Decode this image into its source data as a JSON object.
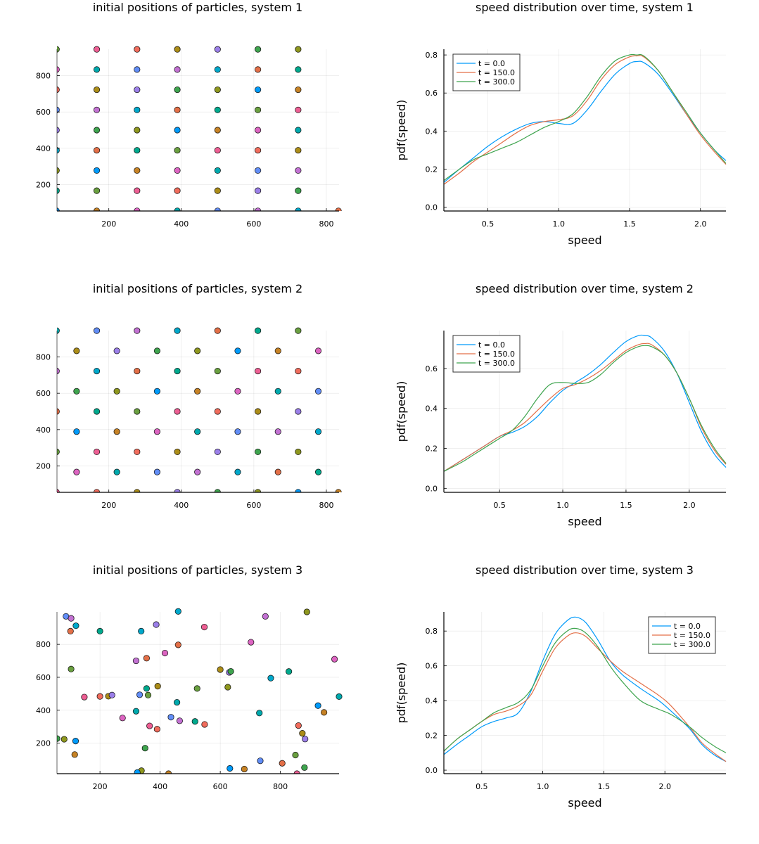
{
  "chart_data": [
    {
      "type": "scatter",
      "title": "initial positions of particles, system 1",
      "xlabel": "",
      "ylabel": "",
      "xlim": [
        57,
        835
      ],
      "ylim": [
        55,
        945
      ],
      "xticks": [
        200,
        400,
        600,
        800
      ],
      "yticks": [
        200,
        400,
        600,
        800
      ],
      "grid": true,
      "legend": "none",
      "layout": "square-lattice",
      "spacing": 111.1,
      "points": [
        [
          55.6,
          55.6
        ],
        [
          166.7,
          55.6
        ],
        [
          277.8,
          55.6
        ],
        [
          388.9,
          55.6
        ],
        [
          500,
          55.6
        ],
        [
          611.1,
          55.6
        ],
        [
          722.2,
          55.6
        ],
        [
          833.3,
          55.6
        ],
        [
          55.6,
          166.7
        ],
        [
          166.7,
          166.7
        ],
        [
          277.8,
          166.7
        ],
        [
          388.9,
          166.7
        ],
        [
          500,
          166.7
        ],
        [
          611.1,
          166.7
        ],
        [
          722.2,
          166.7
        ],
        [
          55.6,
          277.8
        ],
        [
          166.7,
          277.8
        ],
        [
          277.8,
          277.8
        ],
        [
          388.9,
          277.8
        ],
        [
          500,
          277.8
        ],
        [
          611.1,
          277.8
        ],
        [
          722.2,
          277.8
        ],
        [
          55.6,
          388.9
        ],
        [
          166.7,
          388.9
        ],
        [
          277.8,
          388.9
        ],
        [
          388.9,
          388.9
        ],
        [
          500,
          388.9
        ],
        [
          611.1,
          388.9
        ],
        [
          722.2,
          388.9
        ],
        [
          55.6,
          500
        ],
        [
          166.7,
          500
        ],
        [
          277.8,
          500
        ],
        [
          388.9,
          500
        ],
        [
          500,
          500
        ],
        [
          611.1,
          500
        ],
        [
          722.2,
          500
        ],
        [
          55.6,
          611.1
        ],
        [
          166.7,
          611.1
        ],
        [
          277.8,
          611.1
        ],
        [
          388.9,
          611.1
        ],
        [
          500,
          611.1
        ],
        [
          611.1,
          611.1
        ],
        [
          722.2,
          611.1
        ],
        [
          55.6,
          722.2
        ],
        [
          166.7,
          722.2
        ],
        [
          277.8,
          722.2
        ],
        [
          388.9,
          722.2
        ],
        [
          500,
          722.2
        ],
        [
          611.1,
          722.2
        ],
        [
          722.2,
          722.2
        ],
        [
          55.6,
          833.3
        ],
        [
          166.7,
          833.3
        ],
        [
          277.8,
          833.3
        ],
        [
          388.9,
          833.3
        ],
        [
          500,
          833.3
        ],
        [
          611.1,
          833.3
        ],
        [
          722.2,
          833.3
        ],
        [
          55.6,
          944.4
        ],
        [
          166.7,
          944.4
        ],
        [
          277.8,
          944.4
        ],
        [
          388.9,
          944.4
        ],
        [
          500,
          944.4
        ],
        [
          611.1,
          944.4
        ],
        [
          722.2,
          944.4
        ]
      ]
    },
    {
      "type": "line",
      "title": "speed distribution over time, system 1",
      "xlabel": "speed",
      "ylabel": "pdf(speed)",
      "xlim": [
        0.19,
        2.18
      ],
      "ylim": [
        -0.02,
        0.83
      ],
      "xticks": [
        0.5,
        1.0,
        1.5,
        2.0
      ],
      "xtick_labels": [
        "0.5",
        "1.0",
        "1.5",
        "2.0"
      ],
      "yticks": [
        0.0,
        0.2,
        0.4,
        0.6,
        0.8
      ],
      "ytick_labels": [
        "0.0",
        "0.2",
        "0.4",
        "0.6",
        "0.8"
      ],
      "grid": true,
      "legend": "top-left",
      "x": [
        0.19,
        0.3,
        0.4,
        0.5,
        0.6,
        0.7,
        0.8,
        0.9,
        1.0,
        1.1,
        1.2,
        1.3,
        1.4,
        1.5,
        1.55,
        1.6,
        1.7,
        1.8,
        1.9,
        2.0,
        2.1,
        2.18
      ],
      "series": [
        {
          "name": "t = 0.0",
          "color": "#009AFA",
          "values": [
            0.13,
            0.2,
            0.26,
            0.32,
            0.37,
            0.41,
            0.44,
            0.45,
            0.44,
            0.44,
            0.51,
            0.61,
            0.7,
            0.755,
            0.765,
            0.76,
            0.7,
            0.6,
            0.49,
            0.39,
            0.3,
            0.245
          ]
        },
        {
          "name": "t = 150.0",
          "color": "#E36F47",
          "values": [
            0.12,
            0.18,
            0.24,
            0.29,
            0.34,
            0.39,
            0.43,
            0.45,
            0.46,
            0.48,
            0.56,
            0.67,
            0.75,
            0.79,
            0.795,
            0.79,
            0.72,
            0.61,
            0.49,
            0.38,
            0.29,
            0.225
          ]
        },
        {
          "name": "t = 300.0",
          "color": "#3EA44E",
          "values": [
            0.14,
            0.2,
            0.25,
            0.28,
            0.31,
            0.34,
            0.38,
            0.42,
            0.45,
            0.49,
            0.58,
            0.69,
            0.77,
            0.8,
            0.8,
            0.795,
            0.72,
            0.61,
            0.5,
            0.39,
            0.3,
            0.23
          ]
        }
      ]
    },
    {
      "type": "scatter",
      "title": "initial positions of particles, system 2",
      "xlabel": "",
      "ylabel": "",
      "xlim": [
        57,
        835
      ],
      "ylim": [
        55,
        945
      ],
      "xticks": [
        200,
        400,
        600,
        800
      ],
      "yticks": [
        200,
        400,
        600,
        800
      ],
      "grid": true,
      "legend": "none",
      "layout": "hexagonal-lattice",
      "points": [
        [
          55.6,
          55.6
        ],
        [
          166.7,
          55.6
        ],
        [
          277.8,
          55.6
        ],
        [
          388.9,
          55.6
        ],
        [
          500,
          55.6
        ],
        [
          611.1,
          55.6
        ],
        [
          722.2,
          55.6
        ],
        [
          833.3,
          55.6
        ],
        [
          111.1,
          166.7
        ],
        [
          222.2,
          166.7
        ],
        [
          333.3,
          166.7
        ],
        [
          444.4,
          166.7
        ],
        [
          555.6,
          166.7
        ],
        [
          666.7,
          166.7
        ],
        [
          777.8,
          166.7
        ],
        [
          55.6,
          277.8
        ],
        [
          166.7,
          277.8
        ],
        [
          277.8,
          277.8
        ],
        [
          388.9,
          277.8
        ],
        [
          500,
          277.8
        ],
        [
          611.1,
          277.8
        ],
        [
          722.2,
          277.8
        ],
        [
          111.1,
          388.9
        ],
        [
          222.2,
          388.9
        ],
        [
          333.3,
          388.9
        ],
        [
          444.4,
          388.9
        ],
        [
          555.6,
          388.9
        ],
        [
          666.7,
          388.9
        ],
        [
          777.8,
          388.9
        ],
        [
          55.6,
          500
        ],
        [
          166.7,
          500
        ],
        [
          277.8,
          500
        ],
        [
          388.9,
          500
        ],
        [
          500,
          500
        ],
        [
          611.1,
          500
        ],
        [
          722.2,
          500
        ],
        [
          111.1,
          611.1
        ],
        [
          222.2,
          611.1
        ],
        [
          333.3,
          611.1
        ],
        [
          444.4,
          611.1
        ],
        [
          555.6,
          611.1
        ],
        [
          666.7,
          611.1
        ],
        [
          777.8,
          611.1
        ],
        [
          55.6,
          722.2
        ],
        [
          166.7,
          722.2
        ],
        [
          277.8,
          722.2
        ],
        [
          388.9,
          722.2
        ],
        [
          500,
          722.2
        ],
        [
          611.1,
          722.2
        ],
        [
          722.2,
          722.2
        ],
        [
          111.1,
          833.3
        ],
        [
          222.2,
          833.3
        ],
        [
          333.3,
          833.3
        ],
        [
          444.4,
          833.3
        ],
        [
          555.6,
          833.3
        ],
        [
          666.7,
          833.3
        ],
        [
          777.8,
          833.3
        ],
        [
          55.6,
          944.4
        ],
        [
          166.7,
          944.4
        ],
        [
          277.8,
          944.4
        ],
        [
          388.9,
          944.4
        ],
        [
          500,
          944.4
        ],
        [
          611.1,
          944.4
        ],
        [
          722.2,
          944.4
        ]
      ]
    },
    {
      "type": "line",
      "title": "speed distribution over time, system 2",
      "xlabel": "speed",
      "ylabel": "pdf(speed)",
      "xlim": [
        0.06,
        2.29
      ],
      "ylim": [
        -0.02,
        0.79
      ],
      "xticks": [
        0.5,
        1.0,
        1.5,
        2.0
      ],
      "xtick_labels": [
        "0.5",
        "1.0",
        "1.5",
        "2.0"
      ],
      "yticks": [
        0.0,
        0.2,
        0.4,
        0.6
      ],
      "ytick_labels": [
        "0.0",
        "0.2",
        "0.4",
        "0.6"
      ],
      "grid": true,
      "legend": "top-left",
      "x": [
        0.06,
        0.2,
        0.3,
        0.4,
        0.5,
        0.6,
        0.7,
        0.8,
        0.9,
        1.0,
        1.1,
        1.2,
        1.3,
        1.4,
        1.5,
        1.6,
        1.65,
        1.7,
        1.8,
        1.9,
        2.0,
        2.1,
        2.2,
        2.29
      ],
      "series": [
        {
          "name": "t = 0.0",
          "color": "#009AFA",
          "values": [
            0.085,
            0.14,
            0.18,
            0.22,
            0.26,
            0.28,
            0.31,
            0.36,
            0.43,
            0.49,
            0.53,
            0.57,
            0.62,
            0.68,
            0.735,
            0.765,
            0.765,
            0.755,
            0.69,
            0.58,
            0.43,
            0.28,
            0.17,
            0.105
          ]
        },
        {
          "name": "t = 150.0",
          "color": "#E36F47",
          "values": [
            0.085,
            0.14,
            0.18,
            0.22,
            0.26,
            0.29,
            0.33,
            0.39,
            0.45,
            0.5,
            0.52,
            0.55,
            0.59,
            0.64,
            0.69,
            0.72,
            0.725,
            0.72,
            0.67,
            0.58,
            0.45,
            0.3,
            0.19,
            0.12
          ]
        },
        {
          "name": "t = 300.0",
          "color": "#3EA44E",
          "values": [
            0.085,
            0.13,
            0.17,
            0.21,
            0.25,
            0.29,
            0.36,
            0.45,
            0.52,
            0.53,
            0.525,
            0.53,
            0.57,
            0.63,
            0.68,
            0.71,
            0.715,
            0.71,
            0.67,
            0.58,
            0.45,
            0.31,
            0.2,
            0.125
          ]
        }
      ]
    },
    {
      "type": "scatter",
      "title": "initial positions of particles, system 3",
      "xlabel": "",
      "ylabel": "",
      "xlim": [
        57,
        995
      ],
      "ylim": [
        15,
        997
      ],
      "xticks": [
        200,
        400,
        600,
        800
      ],
      "yticks": [
        200,
        400,
        600,
        800
      ],
      "grid": true,
      "legend": "none",
      "layout": "random",
      "points": [
        [
          87,
          970
        ],
        [
          104,
          958
        ],
        [
          120,
          913
        ],
        [
          102,
          880
        ],
        [
          200,
          880
        ],
        [
          104,
          650
        ],
        [
          148,
          480
        ],
        [
          200,
          484
        ],
        [
          228,
          485
        ],
        [
          240,
          492
        ],
        [
          57,
          228
        ],
        [
          81,
          224
        ],
        [
          119,
          213
        ],
        [
          116,
          131
        ],
        [
          275,
          353
        ],
        [
          320,
          394
        ],
        [
          332,
          494
        ],
        [
          320,
          700
        ],
        [
          337,
          880
        ],
        [
          355,
          716
        ],
        [
          355,
          532
        ],
        [
          360,
          492
        ],
        [
          365,
          305
        ],
        [
          390,
          285
        ],
        [
          392,
          546
        ],
        [
          387,
          920
        ],
        [
          350,
          170
        ],
        [
          338,
          33
        ],
        [
          324,
          22
        ],
        [
          428,
          15
        ],
        [
          416,
          747
        ],
        [
          456,
          448
        ],
        [
          436,
          358
        ],
        [
          465,
          336
        ],
        [
          460,
          1000
        ],
        [
          460,
          797
        ],
        [
          516,
          332
        ],
        [
          523,
          532
        ],
        [
          547,
          905
        ],
        [
          548,
          314
        ],
        [
          600,
          647
        ],
        [
          630,
          630
        ],
        [
          635,
          636
        ],
        [
          625,
          540
        ],
        [
          632,
          47
        ],
        [
          680,
          43
        ],
        [
          702,
          813
        ],
        [
          730,
          383
        ],
        [
          733,
          93
        ],
        [
          750,
          970
        ],
        [
          768,
          595
        ],
        [
          806,
          78
        ],
        [
          828,
          635
        ],
        [
          850,
          128
        ],
        [
          855,
          15
        ],
        [
          860,
          307
        ],
        [
          873,
          260
        ],
        [
          882,
          225
        ],
        [
          880,
          52
        ],
        [
          888,
          997
        ],
        [
          925,
          428
        ],
        [
          945,
          387
        ],
        [
          980,
          710
        ],
        [
          995,
          483
        ]
      ]
    },
    {
      "type": "line",
      "title": "speed distribution over time, system 3",
      "xlabel": "speed",
      "ylabel": "pdf(speed)",
      "xlim": [
        0.19,
        2.5
      ],
      "ylim": [
        -0.02,
        0.91
      ],
      "xticks": [
        0.5,
        1.0,
        1.5,
        2.0
      ],
      "xtick_labels": [
        "0.5",
        "1.0",
        "1.5",
        "2.0"
      ],
      "yticks": [
        0.0,
        0.2,
        0.4,
        0.6,
        0.8
      ],
      "ytick_labels": [
        "0.0",
        "0.2",
        "0.4",
        "0.6",
        "0.8"
      ],
      "grid": true,
      "legend": "top-right",
      "x": [
        0.19,
        0.3,
        0.4,
        0.5,
        0.6,
        0.7,
        0.8,
        0.9,
        1.0,
        1.1,
        1.2,
        1.27,
        1.35,
        1.45,
        1.55,
        1.65,
        1.8,
        1.95,
        2.05,
        2.2,
        2.3,
        2.4,
        2.5
      ],
      "series": [
        {
          "name": "t = 0.0",
          "color": "#009AFA",
          "values": [
            0.09,
            0.15,
            0.2,
            0.25,
            0.28,
            0.3,
            0.33,
            0.45,
            0.63,
            0.78,
            0.86,
            0.88,
            0.85,
            0.75,
            0.63,
            0.55,
            0.47,
            0.4,
            0.34,
            0.24,
            0.15,
            0.09,
            0.05
          ]
        },
        {
          "name": "t = 150.0",
          "color": "#E36F47",
          "values": [
            0.11,
            0.18,
            0.23,
            0.28,
            0.32,
            0.34,
            0.37,
            0.43,
            0.57,
            0.7,
            0.77,
            0.79,
            0.77,
            0.7,
            0.63,
            0.57,
            0.5,
            0.43,
            0.37,
            0.25,
            0.16,
            0.1,
            0.05
          ]
        },
        {
          "name": "t = 300.0",
          "color": "#3EA44E",
          "values": [
            0.11,
            0.18,
            0.23,
            0.28,
            0.33,
            0.36,
            0.39,
            0.46,
            0.6,
            0.73,
            0.8,
            0.815,
            0.79,
            0.71,
            0.6,
            0.51,
            0.4,
            0.35,
            0.32,
            0.25,
            0.19,
            0.14,
            0.1
          ]
        }
      ]
    }
  ],
  "palette": [
    "#009AFA",
    "#E36F47",
    "#3EA44E",
    "#C271D2",
    "#AC8D18",
    "#00A9AD",
    "#ED5E93",
    "#C68225",
    "#00A98D",
    "#8E971E",
    "#00A8CB",
    "#9B7FE9",
    "#618DF6",
    "#F16C5C",
    "#DC64C1",
    "#6AA040"
  ]
}
